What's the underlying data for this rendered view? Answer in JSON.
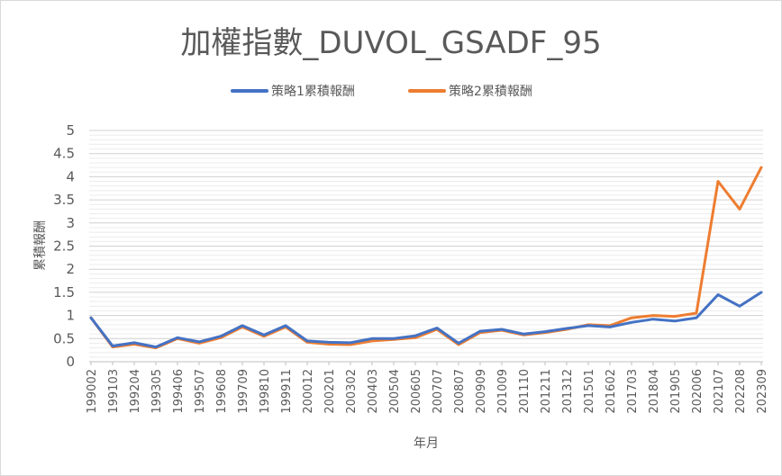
{
  "chart_data": {
    "type": "line",
    "title": "加權指數_DUVOL_GSADF_95",
    "xlabel": "年月",
    "ylabel": "累積報酬",
    "ylim": [
      0,
      5
    ],
    "y_ticks": [
      "0",
      "0.5",
      "1",
      "1.5",
      "2",
      "2.5",
      "3",
      "3.5",
      "4",
      "4.5",
      "5"
    ],
    "x_ticks": [
      "199002",
      "199103",
      "199204",
      "199305",
      "199406",
      "199507",
      "199608",
      "199709",
      "199810",
      "199911",
      "200012",
      "200201",
      "200302",
      "200403",
      "200504",
      "200605",
      "200707",
      "200807",
      "200909",
      "201009",
      "201110",
      "201211",
      "201312",
      "201501",
      "201602",
      "201703",
      "201804",
      "201905",
      "202006",
      "202107",
      "202208",
      "202309"
    ],
    "grid": true,
    "legend_position": "top",
    "series": [
      {
        "name": "策略1累積報酬",
        "color": "#4472C4",
        "values": [
          0.95,
          0.34,
          0.41,
          0.32,
          0.52,
          0.43,
          0.55,
          0.78,
          0.58,
          0.78,
          0.45,
          0.42,
          0.41,
          0.5,
          0.5,
          0.56,
          0.73,
          0.4,
          0.66,
          0.7,
          0.6,
          0.65,
          0.72,
          0.78,
          0.75,
          0.85,
          0.92,
          0.88,
          0.95,
          1.45,
          1.2,
          1.5
        ]
      },
      {
        "name": "策略2累積報酬",
        "color": "#ED7D31",
        "values": [
          0.95,
          0.32,
          0.38,
          0.3,
          0.5,
          0.4,
          0.52,
          0.75,
          0.55,
          0.75,
          0.42,
          0.38,
          0.37,
          0.45,
          0.48,
          0.52,
          0.7,
          0.37,
          0.63,
          0.68,
          0.58,
          0.63,
          0.7,
          0.8,
          0.78,
          0.95,
          1.0,
          0.98,
          1.05,
          3.9,
          3.3,
          4.2
        ]
      }
    ]
  }
}
